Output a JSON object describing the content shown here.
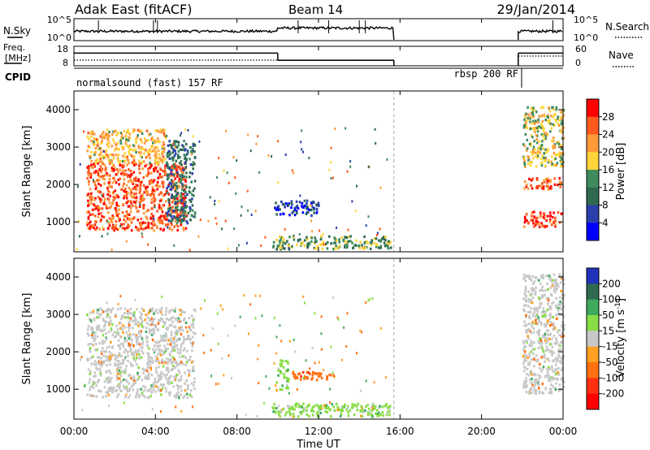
{
  "header": {
    "title": "Adak East (fitACF)",
    "beam": "Beam 14",
    "date": "29/Jan/2014"
  },
  "noise_panel": {
    "left_label": "N.Sky",
    "right_label": "N.Search",
    "left_ticks": [
      "10^5",
      "10^0"
    ],
    "right_ticks": [
      "10^5",
      "10^0"
    ]
  },
  "freq_panel": {
    "left_label_top": "Freq.",
    "left_label_bottom": "[MHz]",
    "right_label": "Nave",
    "left_ticks": [
      "18",
      "8"
    ],
    "right_ticks": [
      "60",
      "0"
    ],
    "freq_segments": [
      {
        "t0": 0.0,
        "t1": 10.0,
        "value": 14.5
      },
      {
        "t0": 10.0,
        "t1": 15.7,
        "value": 10.8
      },
      {
        "t0": 21.8,
        "t1": 24.0,
        "value": 14.5
      }
    ]
  },
  "cpid_panel": {
    "label": "CPID",
    "programs": [
      {
        "name": "normalsound (fast) 157 RF",
        "t0": 0.0,
        "t1": 21.8
      },
      {
        "name": "rbsp 200 RF",
        "t0": 21.8,
        "t1": 24.0
      }
    ]
  },
  "x_axis": {
    "label": "Time UT",
    "tick_labels": [
      "00:00",
      "04:00",
      "08:00",
      "12:00",
      "16:00",
      "20:00",
      "00:00"
    ],
    "tick_values": [
      0,
      4,
      8,
      12,
      16,
      20,
      24
    ],
    "range": [
      0,
      24
    ]
  },
  "y_axis": {
    "label": "Slant Range [km]",
    "tick_labels": [
      "1000",
      "2000",
      "3000",
      "4000"
    ],
    "tick_values": [
      1000,
      2000,
      3000,
      4000
    ],
    "range": [
      200,
      4500
    ]
  },
  "power_colorbar": {
    "label": "Power [dB]",
    "tick_labels": [
      "28",
      "24",
      "20",
      "16",
      "12",
      "8",
      "4"
    ],
    "colors": [
      "#ff0000",
      "#ff5a1e",
      "#ff9a3a",
      "#ffd43a",
      "#3f8b5e",
      "#2f6a50",
      "#2b3faa",
      "#0000ff"
    ]
  },
  "velocity_colorbar": {
    "label": "Velocity [m s^-1]",
    "tick_labels": [
      "200",
      "100",
      "50",
      "15",
      "-15",
      "-50",
      "-100",
      "-200"
    ],
    "colors": [
      "#2233bb",
      "#2f6a50",
      "#3faa5e",
      "#88dd44",
      "#c8c8c8",
      "#ffa020",
      "#ff7010",
      "#ff3010",
      "#ff0000"
    ]
  },
  "chart_data": [
    {
      "type": "heatmap",
      "name": "power",
      "x_range_hours": [
        0,
        24
      ],
      "y_range_km": [
        200,
        4500
      ],
      "grid_lines": [
        15.7
      ],
      "data_gap_hours": [
        15.7,
        21.8
      ],
      "regions": [
        {
          "t0": 0.6,
          "t1": 5.5,
          "r0": 800,
          "r1": 2600,
          "dominant_dB": 26
        },
        {
          "t0": 0.6,
          "t1": 4.5,
          "r0": 2600,
          "r1": 3500,
          "dominant_dB": 20
        },
        {
          "t0": 4.5,
          "t1": 5.9,
          "r0": 1000,
          "r1": 3200,
          "dominant_dB": 10
        },
        {
          "t0": 9.8,
          "t1": 12.0,
          "r0": 1200,
          "r1": 1600,
          "dominant_dB": 6
        },
        {
          "t0": 9.7,
          "t1": 15.6,
          "r0": 300,
          "r1": 650,
          "dominant_dB": 14
        },
        {
          "t0": 22.0,
          "t1": 24.0,
          "r0": 900,
          "r1": 1300,
          "dominant_dB": 28
        },
        {
          "t0": 22.0,
          "t1": 24.0,
          "r0": 1900,
          "r1": 2200,
          "dominant_dB": 26
        },
        {
          "t0": 22.0,
          "t1": 24.0,
          "r0": 2500,
          "r1": 4100,
          "dominant_dB": 18
        }
      ]
    },
    {
      "type": "heatmap",
      "name": "velocity",
      "x_range_hours": [
        0,
        24
      ],
      "y_range_km": [
        200,
        4500
      ],
      "grid_lines": [
        15.7
      ],
      "data_gap_hours": [
        15.7,
        21.8
      ],
      "regions": [
        {
          "t0": 0.6,
          "t1": 5.9,
          "r0": 800,
          "r1": 3200,
          "dominant_velocity": 0
        },
        {
          "t0": 10.7,
          "t1": 12.8,
          "r0": 1250,
          "r1": 1500,
          "dominant_velocity": -60
        },
        {
          "t0": 9.9,
          "t1": 10.5,
          "r0": 1000,
          "r1": 1800,
          "dominant_velocity": 30
        },
        {
          "t0": 9.7,
          "t1": 15.6,
          "r0": 300,
          "r1": 650,
          "dominant_velocity": 30
        },
        {
          "t0": 22.0,
          "t1": 24.0,
          "r0": 900,
          "r1": 4100,
          "dominant_velocity": 0
        }
      ]
    }
  ]
}
